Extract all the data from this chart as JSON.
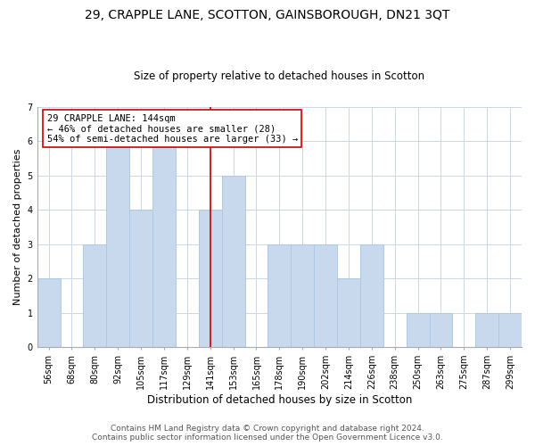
{
  "title": "29, CRAPPLE LANE, SCOTTON, GAINSBOROUGH, DN21 3QT",
  "subtitle": "Size of property relative to detached houses in Scotton",
  "xlabel": "Distribution of detached houses by size in Scotton",
  "ylabel": "Number of detached properties",
  "bar_labels": [
    "56sqm",
    "68sqm",
    "80sqm",
    "92sqm",
    "105sqm",
    "117sqm",
    "129sqm",
    "141sqm",
    "153sqm",
    "165sqm",
    "178sqm",
    "190sqm",
    "202sqm",
    "214sqm",
    "226sqm",
    "238sqm",
    "250sqm",
    "263sqm",
    "275sqm",
    "287sqm",
    "299sqm"
  ],
  "bar_heights": [
    2,
    0,
    3,
    6,
    4,
    6,
    0,
    4,
    5,
    0,
    3,
    3,
    3,
    2,
    3,
    0,
    1,
    1,
    0,
    1,
    1
  ],
  "bar_color": "#c8d9ee",
  "bar_edge_color": "#aec8e8",
  "reference_line_x": 7,
  "reference_line_color": "#cc0000",
  "annotation_title": "29 CRAPPLE LANE: 144sqm",
  "annotation_line1": "← 46% of detached houses are smaller (28)",
  "annotation_line2": "54% of semi-detached houses are larger (33) →",
  "annotation_box_color": "#ffffff",
  "annotation_box_edge": "#cc0000",
  "ylim": [
    0,
    7
  ],
  "yticks": [
    0,
    1,
    2,
    3,
    4,
    5,
    6,
    7
  ],
  "footer_line1": "Contains HM Land Registry data © Crown copyright and database right 2024.",
  "footer_line2": "Contains public sector information licensed under the Open Government Licence v3.0.",
  "bg_color": "#ffffff",
  "grid_color": "#c8d8e8",
  "title_fontsize": 10,
  "subtitle_fontsize": 8.5,
  "ylabel_fontsize": 8,
  "xlabel_fontsize": 8.5,
  "tick_fontsize": 7,
  "annotation_fontsize": 7.5,
  "footer_fontsize": 6.5
}
